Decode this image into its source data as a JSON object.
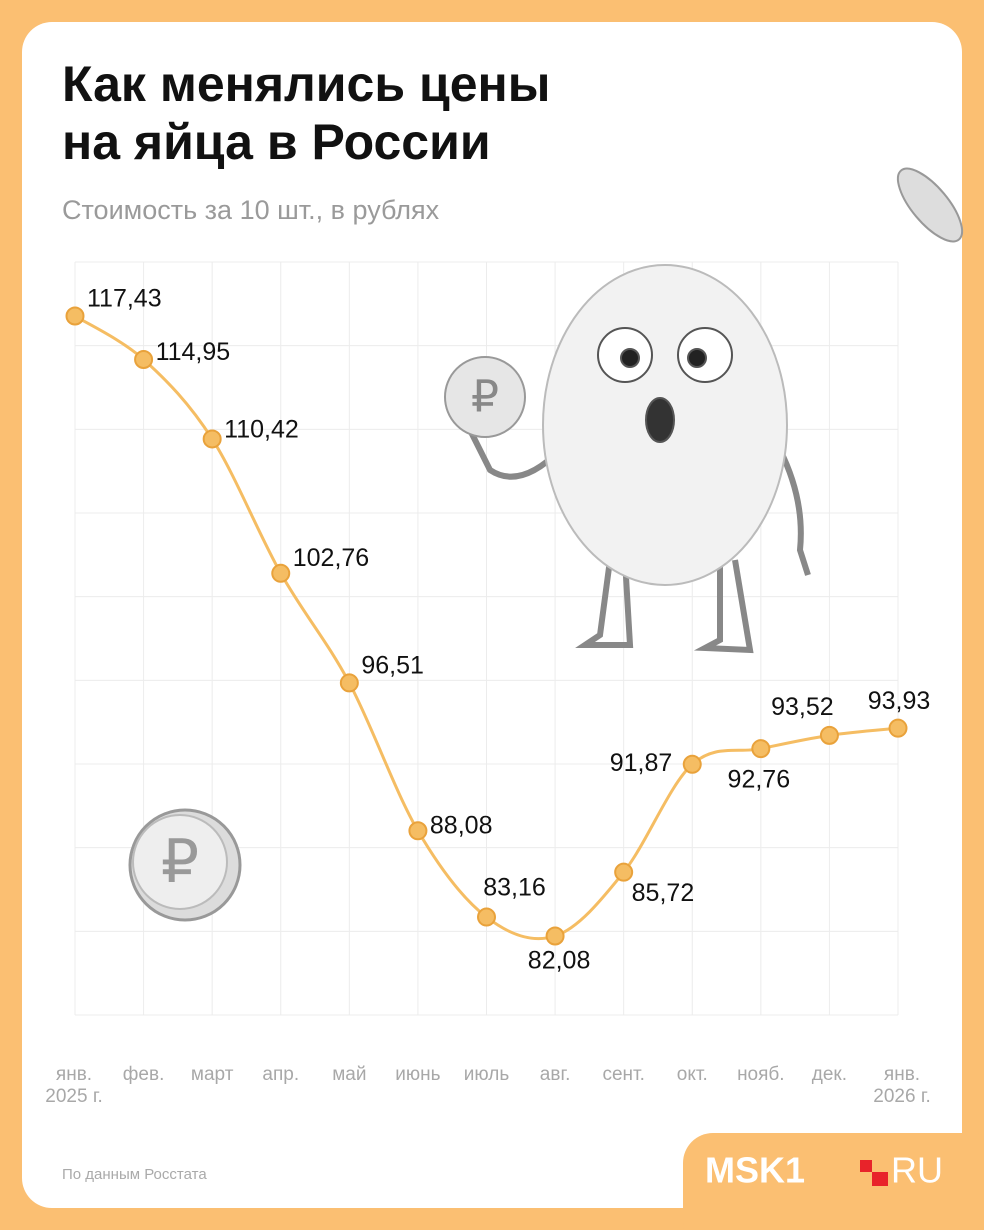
{
  "header": {
    "title": "Как менялись цены\nна яйца в России",
    "subtitle": "Стоимость за 10 шт., в рублях"
  },
  "chart_data": {
    "type": "line",
    "categories": [
      "янв.\n2025 г.",
      "фев.",
      "март",
      "апр.",
      "май",
      "июнь",
      "июль",
      "авг.",
      "сент.",
      "окт.",
      "нояб.",
      "дек.",
      "янв.\n2026 г."
    ],
    "values": [
      117.43,
      114.95,
      110.42,
      102.76,
      96.51,
      88.08,
      83.16,
      82.08,
      85.72,
      91.87,
      92.76,
      93.52,
      93.93
    ],
    "value_labels": [
      "117,43",
      "114,95",
      "110,42",
      "102,76",
      "96,51",
      "88,08",
      "83,16",
      "82,08",
      "85,72",
      "91,87",
      "92,76",
      "93,52",
      "93,93"
    ],
    "color": "#f5bd63",
    "grid": true
  },
  "footer": {
    "source": "По данным Росстата",
    "logo_left": "MSK1",
    "logo_right": "RU"
  }
}
